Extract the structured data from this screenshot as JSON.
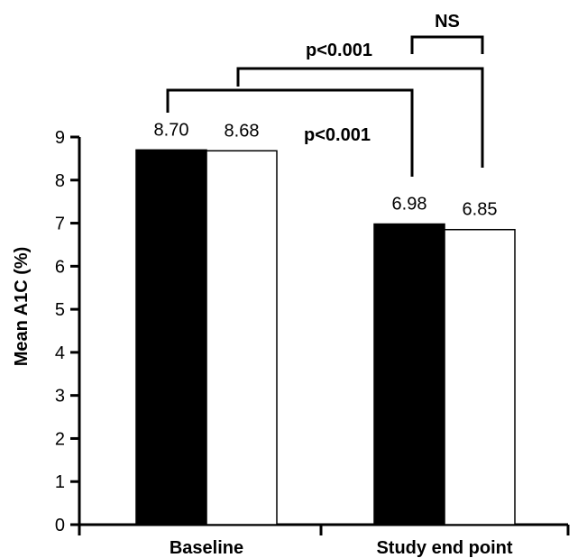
{
  "chart_data": {
    "type": "bar",
    "title": "",
    "xlabel": "",
    "ylabel": "Mean A1C (%)",
    "ylim": [
      0,
      9
    ],
    "yticks": [
      0,
      1,
      2,
      3,
      4,
      5,
      6,
      7,
      8,
      9
    ],
    "categories": [
      "Baseline",
      "Study end point"
    ],
    "series": [
      {
        "color": "#000000",
        "values": [
          8.7,
          6.98
        ]
      },
      {
        "color": "#ffffff",
        "values": [
          8.68,
          6.85
        ]
      }
    ],
    "data_labels": [
      [
        "8.70",
        "6.98"
      ],
      [
        "8.68",
        "6.85"
      ]
    ],
    "annotations": [
      {
        "text": "p<0.001",
        "type": "within-group",
        "group": "black",
        "from": "Baseline",
        "to": "Study end point"
      },
      {
        "text": "p<0.001",
        "type": "within-group",
        "group": "white",
        "from": "Baseline",
        "to": "Study end point"
      },
      {
        "text": "NS",
        "type": "between-group",
        "at": "Study end point"
      }
    ],
    "grid": false,
    "legend": "none"
  }
}
